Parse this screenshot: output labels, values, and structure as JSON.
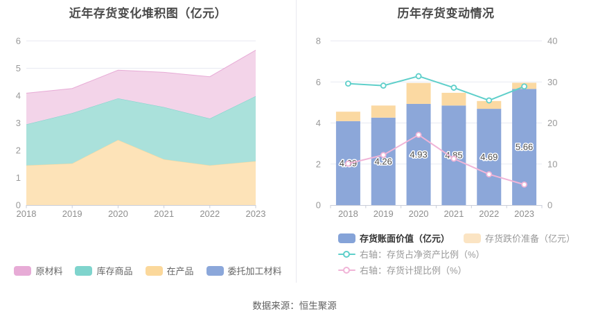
{
  "source": "数据来源：恒生聚源",
  "theme": {
    "background": "#ffffff",
    "grid_color": "#e7eaf2",
    "axis_color": "#c9cdd9",
    "tick_text_color": "#999999",
    "title_color": "#4a4a4a",
    "value_label_color": "#4d4d4d",
    "divider_color": "#e9e9ef",
    "source_color": "#5f5f5f"
  },
  "chart_data": [
    {
      "type": "area",
      "stacked": true,
      "title": "近年存货变化堆积图（亿元）",
      "categories": [
        "2018",
        "2019",
        "2020",
        "2021",
        "2022",
        "2023"
      ],
      "ylim": [
        0,
        6
      ],
      "yticks": [
        "0",
        "1",
        "2",
        "3",
        "4",
        "5",
        "6"
      ],
      "grid": true,
      "legend_position": "bottom",
      "series": [
        {
          "key": "consigned-materials",
          "name": "委托加工材料",
          "color": "#8ba7da",
          "fill": "#d9e2f4",
          "values": [
            0,
            0,
            0,
            0,
            0,
            0
          ]
        },
        {
          "key": "work-in-progress",
          "name": "在产品",
          "color": "#fbd89b",
          "fill": "#fde3b8",
          "values": [
            1.45,
            1.52,
            2.38,
            1.67,
            1.45,
            1.6
          ]
        },
        {
          "key": "finished-goods",
          "name": "库存商品",
          "color": "#7fd4cd",
          "fill": "#aae1db",
          "values": [
            1.5,
            1.84,
            1.52,
            1.91,
            1.71,
            2.38
          ]
        },
        {
          "key": "raw-materials",
          "name": "原材料",
          "color": "#e7abd6",
          "fill": "#f3d4e9",
          "values": [
            1.14,
            0.9,
            1.03,
            1.27,
            1.53,
            1.68
          ]
        }
      ],
      "legend": [
        {
          "key": "raw-materials",
          "label": "原材料",
          "color": "#e7abd6"
        },
        {
          "key": "finished-goods",
          "label": "库存商品",
          "color": "#7fd4cd"
        },
        {
          "key": "work-in-progress",
          "label": "在产品",
          "color": "#fbd89b"
        },
        {
          "key": "consigned-materials",
          "label": "委托加工材料",
          "color": "#8ba7da"
        }
      ]
    },
    {
      "type": "bar+line",
      "title": "历年存货变动情况",
      "categories": [
        "2018",
        "2019",
        "2020",
        "2021",
        "2022",
        "2023"
      ],
      "left_ylim": [
        0,
        8
      ],
      "left_yticks": [
        "0",
        "2",
        "4",
        "6",
        "8"
      ],
      "right_ylim": [
        0,
        40
      ],
      "right_yticks": [
        "0",
        "10",
        "20",
        "30",
        "40"
      ],
      "grid": true,
      "bar_series": [
        {
          "key": "book-value-bars",
          "name": "存货账面价值（亿元）",
          "color": "#8ca7d9",
          "axis": "left",
          "values": [
            4.09,
            4.26,
            4.93,
            4.85,
            4.69,
            5.66
          ],
          "labels": [
            "4.09",
            "4.26",
            "4.93",
            "4.85",
            "4.69",
            "5.66"
          ]
        },
        {
          "key": "provision-bars",
          "name": "存货跌价准备（亿元）",
          "color": "#fbd9a2",
          "axis": "left",
          "values": [
            0.46,
            0.59,
            1.02,
            0.62,
            0.38,
            0.3
          ],
          "labels": null
        }
      ],
      "line_series": [
        {
          "key": "net-asset-ratio-line",
          "name": "右轴：存货占净资产比例（%）",
          "color": "#5ecfca",
          "axis": "right",
          "values": [
            29.6,
            29.1,
            31.4,
            28.6,
            25.5,
            28.9
          ]
        },
        {
          "key": "provision-ratio-line",
          "name": "右轴：存货计提比例（%）",
          "color": "#f0b4d7",
          "axis": "right",
          "values": [
            10.1,
            12.2,
            17.1,
            11.3,
            7.5,
            5.0
          ]
        }
      ],
      "legend_rows": [
        [
          {
            "key": "book-value-bars",
            "label": "存货账面价值（亿元）",
            "color": "#85a3d8",
            "marker": "rect",
            "style": "em"
          },
          {
            "key": "provision-bars",
            "label": "存货跌价准备（亿元）",
            "color": "#fbe4c3",
            "marker": "rect",
            "style": "dim"
          }
        ],
        [
          {
            "key": "net-asset-ratio-line",
            "label": "右轴：存货占净资产比例（%）",
            "color": "#5ecfca",
            "marker": "line",
            "style": "dim"
          }
        ],
        [
          {
            "key": "provision-ratio-line",
            "label": "右轴：存货计提比例（%）",
            "color": "#f0b4d7",
            "marker": "line",
            "style": "dim"
          }
        ]
      ]
    }
  ]
}
